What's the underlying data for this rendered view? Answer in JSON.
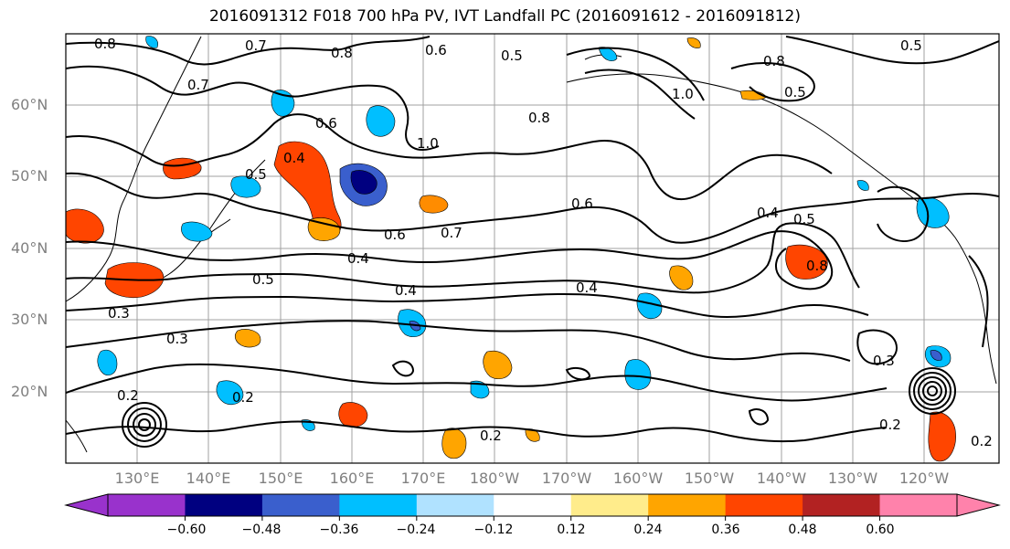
{
  "title": "2016091312 F018 700 hPa PV, IVT Landfall PC (2016091612 - 2016091812)",
  "lat_labels": [
    "60°N",
    "50°N",
    "40°N",
    "30°N",
    "20°N"
  ],
  "lon_labels": [
    "130°E",
    "140°E",
    "150°E",
    "160°E",
    "170°E",
    "180°W",
    "170°W",
    "160°W",
    "150°W",
    "140°W",
    "130°W",
    "120°W"
  ],
  "contour_labels": [
    "0.8",
    "0.7",
    "0.8",
    "0.6",
    "0.5",
    "0.5",
    "0.6",
    "0.7",
    "0.4",
    "1.0",
    "0.8",
    "0.5",
    "0.8",
    "1.0",
    "0.4",
    "0.5",
    "0.6",
    "0.7",
    "0.4",
    "0.6",
    "0.5",
    "0.8",
    "0.5",
    "0.3",
    "0.4",
    "0.4",
    "0.3",
    "0.2",
    "0.2",
    "0.3",
    "0.2",
    "0.2",
    "0.2"
  ],
  "colorbar": {
    "colors": [
      "#9932cc",
      "#000080",
      "#3a5fcd",
      "#00bfff",
      "#b0e2ff",
      "#ffffff",
      "#ffec8b",
      "#ffa500",
      "#ff4500",
      "#b22222",
      "#ff82ab"
    ],
    "tick_labels": [
      "−0.60",
      "−0.48",
      "−0.36",
      "−0.24",
      "−0.12",
      "0.12",
      "0.24",
      "0.36",
      "0.48",
      "0.60"
    ]
  }
}
